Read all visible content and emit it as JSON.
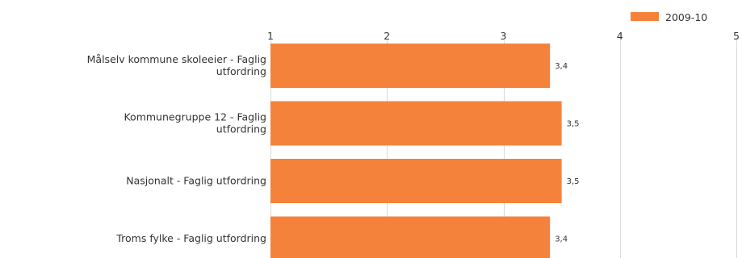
{
  "chart_data": {
    "type": "bar",
    "orientation": "horizontal",
    "categories": [
      [
        "Målselv kommune skoleeier - Faglig",
        "utfordring"
      ],
      [
        "Kommunegruppe 12 - Faglig",
        "utfordring"
      ],
      [
        "Nasjonalt - Faglig utfordring"
      ],
      [
        "Troms fylke - Faglig utfordring"
      ]
    ],
    "series": [
      {
        "name": "2009-10",
        "color": "#f4823a",
        "values": [
          3.4,
          3.5,
          3.5,
          3.4
        ],
        "labels": [
          "3,4",
          "3,5",
          "3,5",
          "3,4"
        ]
      }
    ],
    "xlim": [
      1,
      5
    ],
    "ticks": [
      1,
      2,
      3,
      4,
      5
    ],
    "tick_labels": [
      "1",
      "2",
      "3",
      "4",
      "5"
    ],
    "grid": true,
    "legend_position": "top-right",
    "title": "",
    "xlabel": "",
    "ylabel": ""
  }
}
